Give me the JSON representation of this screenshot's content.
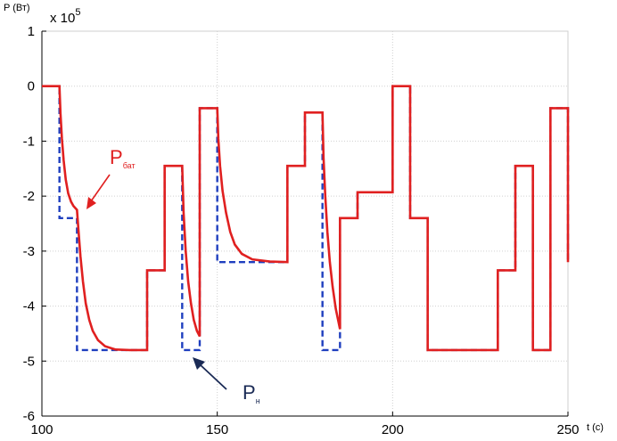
{
  "chart_data": {
    "type": "line",
    "ylabel": "P (Вт)",
    "xlabel": "t (c)",
    "yexponent_base": "x 10",
    "yexponent_power": "5",
    "xlim": [
      100,
      250
    ],
    "ylim": [
      -6,
      1
    ],
    "xticks": [
      100,
      150,
      200,
      250
    ],
    "yticks": [
      1,
      0,
      -1,
      -2,
      -3,
      -4,
      -5,
      -6
    ],
    "grid": true,
    "annotations": [
      {
        "name": "p-bat-label",
        "main": "P",
        "sub": "бат",
        "color": "#e02020"
      },
      {
        "name": "p-n-label",
        "main": "P",
        "sub": "н",
        "color": "#1a2a55"
      }
    ],
    "series": [
      {
        "name": "Pн",
        "style": "dashed",
        "color": "#1f3fbf",
        "points": [
          [
            100,
            0
          ],
          [
            105,
            0
          ],
          [
            105,
            -2.4
          ],
          [
            110,
            -2.4
          ],
          [
            110,
            -4.8
          ],
          [
            130,
            -4.8
          ],
          [
            130,
            -3.35
          ],
          [
            135,
            -3.35
          ],
          [
            135,
            -1.45
          ],
          [
            140,
            -1.45
          ],
          [
            140,
            -4.8
          ],
          [
            145,
            -4.8
          ],
          [
            145,
            -0.4
          ],
          [
            150,
            -0.4
          ],
          [
            150,
            -3.2
          ],
          [
            170,
            -3.2
          ],
          [
            170,
            -1.45
          ],
          [
            175,
            -1.45
          ],
          [
            175,
            -0.48
          ],
          [
            180,
            -0.48
          ],
          [
            180,
            -4.8
          ],
          [
            185,
            -4.8
          ],
          [
            185,
            -2.4
          ],
          [
            190,
            -2.4
          ],
          [
            190,
            -1.93
          ],
          [
            200,
            -1.93
          ],
          [
            200,
            0
          ],
          [
            205,
            0
          ],
          [
            205,
            -2.4
          ],
          [
            210,
            -2.4
          ],
          [
            210,
            -4.8
          ],
          [
            230,
            -4.8
          ],
          [
            230,
            -3.35
          ],
          [
            235,
            -3.35
          ],
          [
            235,
            -1.45
          ],
          [
            240,
            -1.45
          ],
          [
            240,
            -4.8
          ],
          [
            245,
            -4.8
          ],
          [
            245,
            -0.4
          ],
          [
            250,
            -0.4
          ],
          [
            250,
            -3.2
          ]
        ]
      },
      {
        "name": "Pбат",
        "style": "solid",
        "color": "#e02020",
        "points": [
          [
            100,
            0
          ],
          [
            105,
            0
          ],
          [
            105.3,
            -0.5
          ],
          [
            105.7,
            -0.95
          ],
          [
            106.2,
            -1.35
          ],
          [
            106.8,
            -1.7
          ],
          [
            107.5,
            -1.95
          ],
          [
            108.3,
            -2.1
          ],
          [
            109,
            -2.18
          ],
          [
            110,
            -2.25
          ],
          [
            110.4,
            -2.6
          ],
          [
            111,
            -3.1
          ],
          [
            111.7,
            -3.55
          ],
          [
            112.5,
            -3.95
          ],
          [
            113.5,
            -4.25
          ],
          [
            114.5,
            -4.45
          ],
          [
            116,
            -4.62
          ],
          [
            118,
            -4.73
          ],
          [
            121,
            -4.79
          ],
          [
            125,
            -4.8
          ],
          [
            130,
            -4.8
          ],
          [
            130,
            -3.35
          ],
          [
            135,
            -3.35
          ],
          [
            135,
            -1.45
          ],
          [
            140,
            -1.45
          ],
          [
            140.4,
            -2.3
          ],
          [
            141,
            -3.0
          ],
          [
            141.7,
            -3.55
          ],
          [
            142.5,
            -3.95
          ],
          [
            143.3,
            -4.25
          ],
          [
            144.2,
            -4.45
          ],
          [
            145,
            -4.55
          ],
          [
            145,
            -0.4
          ],
          [
            150,
            -0.4
          ],
          [
            150.3,
            -0.95
          ],
          [
            150.8,
            -1.45
          ],
          [
            151.5,
            -1.9
          ],
          [
            152.5,
            -2.3
          ],
          [
            153.7,
            -2.65
          ],
          [
            155,
            -2.88
          ],
          [
            157,
            -3.05
          ],
          [
            160,
            -3.15
          ],
          [
            165,
            -3.19
          ],
          [
            170,
            -3.2
          ],
          [
            170,
            -1.45
          ],
          [
            175,
            -1.45
          ],
          [
            175,
            -0.48
          ],
          [
            180,
            -0.48
          ],
          [
            180.3,
            -1.3
          ],
          [
            180.8,
            -2.0
          ],
          [
            181.4,
            -2.65
          ],
          [
            182.1,
            -3.2
          ],
          [
            182.9,
            -3.65
          ],
          [
            183.8,
            -4.05
          ],
          [
            185,
            -4.42
          ],
          [
            185,
            -2.4
          ],
          [
            190,
            -2.4
          ],
          [
            190,
            -1.93
          ],
          [
            200,
            -1.93
          ],
          [
            200,
            0
          ],
          [
            205,
            0
          ],
          [
            205,
            -2.4
          ],
          [
            210,
            -2.4
          ],
          [
            210,
            -4.8
          ],
          [
            230,
            -4.8
          ],
          [
            230,
            -3.35
          ],
          [
            235,
            -3.35
          ],
          [
            235,
            -1.45
          ],
          [
            240,
            -1.45
          ],
          [
            240,
            -4.8
          ],
          [
            245,
            -4.8
          ],
          [
            245,
            -0.4
          ],
          [
            250,
            -0.4
          ],
          [
            250,
            -3.2
          ]
        ]
      }
    ]
  }
}
